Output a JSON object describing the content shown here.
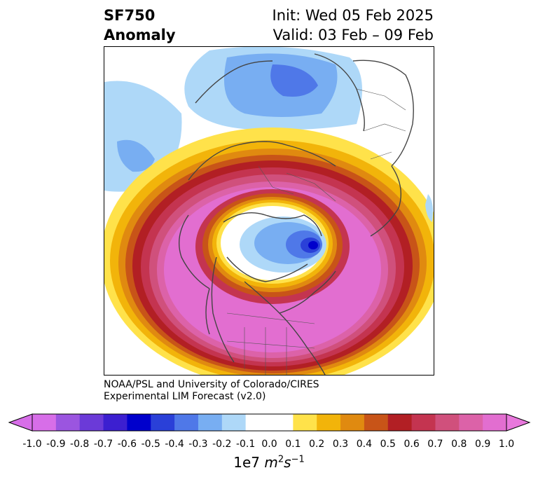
{
  "title": {
    "variable": "SF750",
    "kind": "Anomaly",
    "init": "Init: Wed 05 Feb 2025",
    "valid": "Valid: 03 Feb – 09 Feb"
  },
  "credit": {
    "line1": "NOAA/PSL and University of Colorado/CIRES",
    "line2": "Experimental LIM Forecast (v2.0)"
  },
  "colorbar": {
    "ticks": [
      "-1.0",
      "-0.9",
      "-0.8",
      "-0.7",
      "-0.6",
      "-0.5",
      "-0.4",
      "-0.3",
      "-0.2",
      "-0.1",
      "0.0",
      "0.1",
      "0.2",
      "0.3",
      "0.4",
      "0.5",
      "0.6",
      "0.7",
      "0.8",
      "0.9",
      "1.0"
    ],
    "colors": [
      "#d76ee8",
      "#9b55e0",
      "#6b3ad8",
      "#3c1fd0",
      "#0000cc",
      "#2a40d8",
      "#4f78e8",
      "#78aef2",
      "#aed8f8",
      "#ffffff",
      "#ffffff",
      "#ffe24a",
      "#f2b40a",
      "#e08a10",
      "#c85418",
      "#b21f24",
      "#c43450",
      "#d0507c",
      "#dc62a8",
      "#e26ed0"
    ],
    "extend_low_color": "#d76ee8",
    "extend_high_color": "#e878dc",
    "unit_prefix": "1e7",
    "unit_symbol": "m",
    "unit_sup1": "2",
    "unit_symbol2": "s",
    "unit_sup2": "−1"
  }
}
